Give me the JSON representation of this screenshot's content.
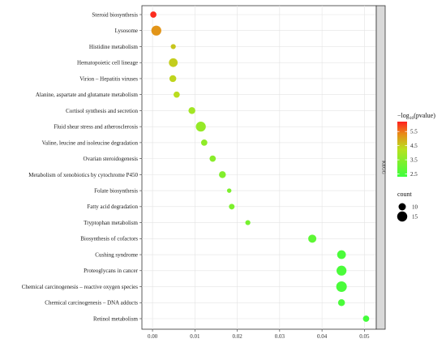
{
  "chart_data": {
    "type": "scatter",
    "facet_strip": "KEGG",
    "categories": [
      "Steroid biosynthesis",
      "Lysosome",
      "Histidine metabolism",
      "Hematopoietic cell lineage",
      "Virion – Hepatitis viruses",
      "Alanine, aspartate and glutamate metabolism",
      "Cortisol synthesis and secretion",
      "Fluid shear stress and atherosclerosis",
      "Valine, leucine and isoleucine degradation",
      "Ovarian steroidogenesis",
      "Metabolism of xenobiotics by cytochrome P450",
      "Folate biosynthesis",
      "Fatty acid degradation",
      "Tryptophan metabolism",
      "Biosynthesis of cofactors",
      "Cushing syndrome",
      "Proteoglycans in cancer",
      "Chemical carcinogenesis – reactive oxygen species",
      "Chemical carcinogenesis – DNA adducts",
      "Retinol metabolism"
    ],
    "x": [
      0.0002,
      0.0009,
      0.0049,
      0.0049,
      0.0048,
      0.0057,
      0.0093,
      0.0114,
      0.0122,
      0.0142,
      0.0165,
      0.0181,
      0.0187,
      0.0225,
      0.0377,
      0.0446,
      0.0446,
      0.0446,
      0.0446,
      0.0504
    ],
    "count": [
      7,
      13,
      5,
      11,
      8,
      7,
      8,
      13,
      7,
      7,
      8,
      4,
      6,
      5,
      10,
      11,
      13,
      14,
      8,
      7
    ],
    "neglog10_pvalue": [
      6.1,
      5.2,
      4.6,
      4.5,
      4.4,
      4.3,
      3.9,
      3.7,
      3.6,
      3.5,
      3.4,
      3.3,
      3.3,
      3.2,
      2.8,
      2.5,
      2.5,
      2.5,
      2.5,
      2.4
    ],
    "xlim": [
      -0.0025,
      0.0528
    ],
    "x_ticks": [
      0.0,
      0.01,
      0.02,
      0.03,
      0.04,
      0.05
    ],
    "x_tick_labels": [
      "0.00",
      "0.01",
      "0.02",
      "0.03",
      "0.04",
      "0.05"
    ],
    "grid": true,
    "legend_placement": "right",
    "color_legend": {
      "title_prefix": "−log",
      "title_sub": "10",
      "title_suffix": "(pvalue)",
      "range": [
        2.3,
        6.2
      ],
      "ticks": [
        2.5,
        3.5,
        4.5,
        5.5
      ],
      "tick_labels": [
        "2.5",
        "3.5",
        "4.5",
        "5.5"
      ],
      "low_color": "#3dff3d",
      "high_color": "#ff2020"
    },
    "size_legend": {
      "title": "count",
      "values": [
        10,
        15
      ],
      "labels": [
        "10",
        "15"
      ]
    }
  }
}
